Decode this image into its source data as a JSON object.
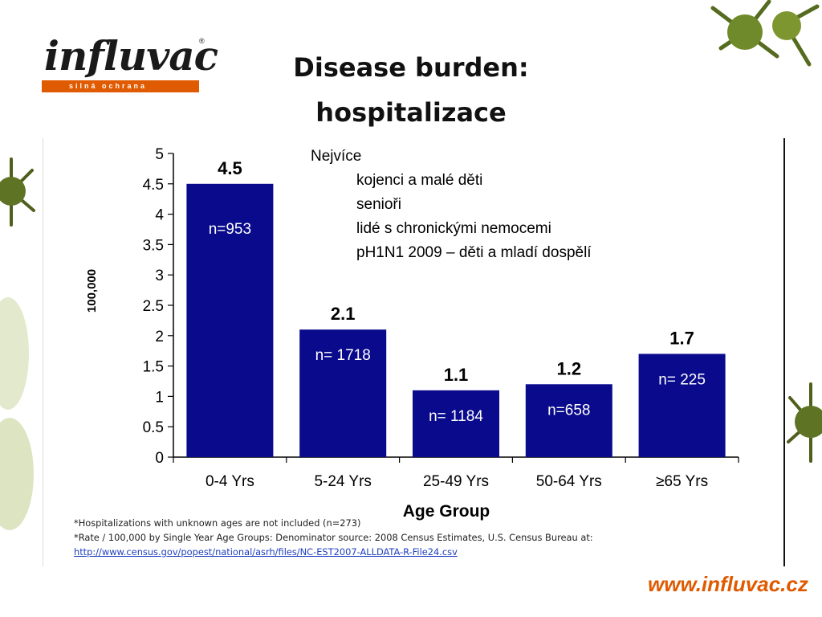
{
  "logo": {
    "word": "influvac",
    "reg": "®",
    "tagline": "silná ochrana"
  },
  "title": {
    "line1": "Disease burden:",
    "line2": "hospitalizace"
  },
  "bullets": {
    "lead": "Nejvíce",
    "items": [
      "kojenci a malé děti",
      "senioři",
      "lidé s chronickými nemocemi",
      "pH1N1 2009 – děti a mladí dospělí"
    ]
  },
  "chart_data": {
    "type": "bar",
    "categories": [
      "0-4 Yrs",
      "5-24 Yrs",
      "25-49 Yrs",
      "50-64 Yrs",
      "≥65 Yrs"
    ],
    "values": [
      4.5,
      2.1,
      1.1,
      1.2,
      1.7
    ],
    "value_labels": [
      "4.5",
      "2.1",
      "1.1",
      "1.2",
      "1.7"
    ],
    "n_labels": [
      "n=953",
      "n= 1718",
      "n= 1184",
      "n=658",
      "n= 225"
    ],
    "xlabel": "Age Group",
    "ylabel": "100,000",
    "ylim": [
      0,
      5
    ],
    "yticks": [
      "0",
      "0.5",
      "1",
      "1.5",
      "2",
      "2.5",
      "3",
      "3.5",
      "4",
      "4.5",
      "5"
    ],
    "bar_color": "#0a0a8c",
    "grid": false
  },
  "footnotes": {
    "line1": "*Hospitalizations with unknown ages are not included (n=273)",
    "line2": "*Rate / 100,000 by Single Year Age Groups: Denominator source: 2008 Census Estimates, U.S. Census Bureau at:",
    "link": "http://www.census.gov/popest/national/asrh/files/NC-EST2007-ALLDATA-R-File24.csv"
  },
  "footer": {
    "url": "www.influvac.cz"
  },
  "colors": {
    "accent": "#e05a00",
    "bar": "#0a0a8c",
    "text": "#111111"
  },
  "icons": {
    "decor": "virus-particle-icon"
  }
}
